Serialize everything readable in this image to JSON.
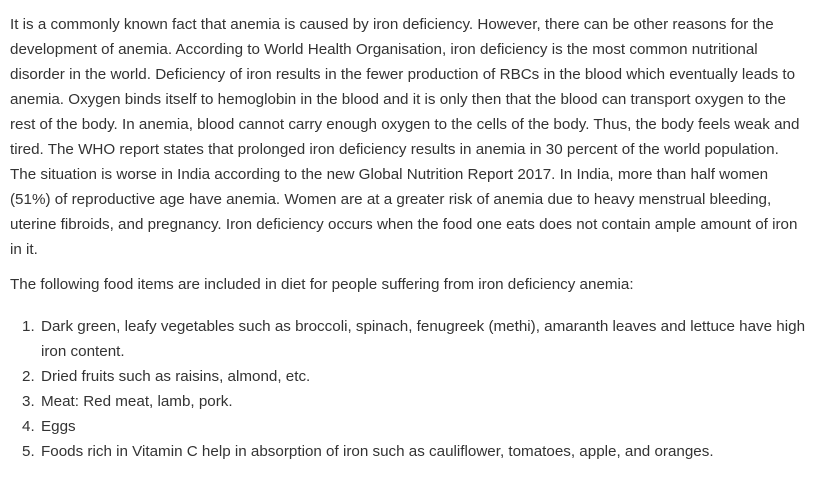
{
  "article": {
    "intro": "It is a commonly known fact that anemia is caused by iron deficiency. However, there can be other reasons for the development of anemia. According to World Health Organisation, iron deficiency is the most common nutritional disorder in the world. Deficiency of iron results in the fewer production of RBCs in the blood which eventually leads to anemia. Oxygen binds itself to hemoglobin in the blood and it is only then that the blood can transport oxygen to the rest of the body. In anemia, blood cannot carry enough oxygen to the cells of the body. Thus, the body feels weak and tired. The WHO report states that prolonged iron deficiency results in anemia in 30 percent of the world population. The situation is worse in India according to the new Global Nutrition Report 2017. In India, more than half women (51%) of reproductive age have anemia. Women are at a greater risk of anemia due to heavy menstrual bleeding, uterine fibroids, and pregnancy. Iron deficiency occurs when the food one eats does not contain ample amount of iron in it.",
    "list_lead": "The following food items are included in diet for people suffering from iron deficiency anemia:",
    "items": [
      {
        "number": "1.",
        "text": "Dark green, leafy vegetables such as broccoli, spinach, fenugreek (methi), amaranth leaves and lettuce have high iron content."
      },
      {
        "number": "2.",
        "text": "Dried fruits such as raisins, almond, etc."
      },
      {
        "number": "3.",
        "text": "Meat: Red meat, lamb, pork."
      },
      {
        "number": "4.",
        "text": "Eggs"
      },
      {
        "number": "5.",
        "text": "Foods rich in Vitamin C help in absorption of iron such as cauliflower, tomatoes, apple, and oranges."
      }
    ]
  }
}
